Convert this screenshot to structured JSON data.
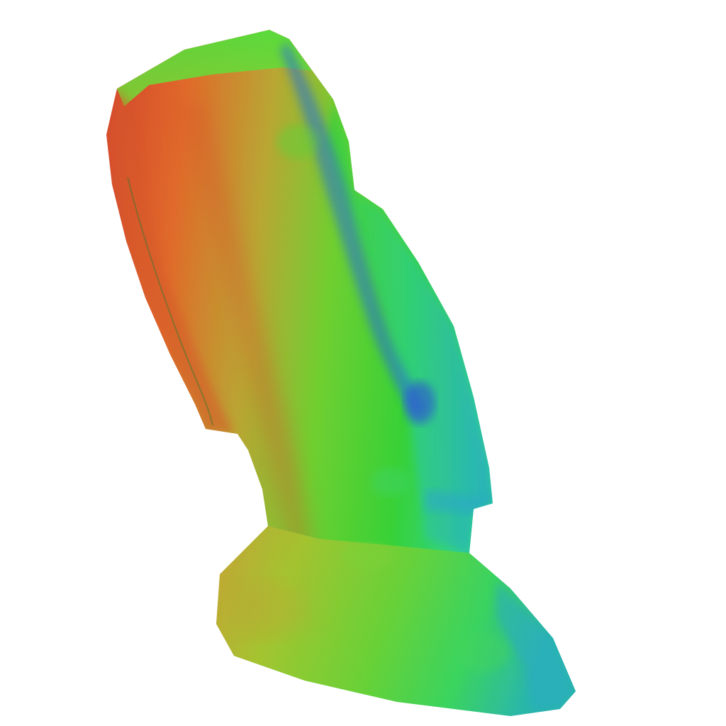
{
  "scene": {
    "background": "#ffffff",
    "subject": "moai-statue-normal-map-render",
    "palette": {
      "red": "#d4432e",
      "orange": "#e06a2a",
      "amber": "#c9a233",
      "yellow_green": "#9ccf2e",
      "green": "#37d136",
      "mint": "#2fd48a",
      "teal": "#1fb7a8",
      "cyan": "#2aa7c9",
      "blue": "#2f5de0",
      "shadow_green": "#2f8f2e"
    }
  }
}
